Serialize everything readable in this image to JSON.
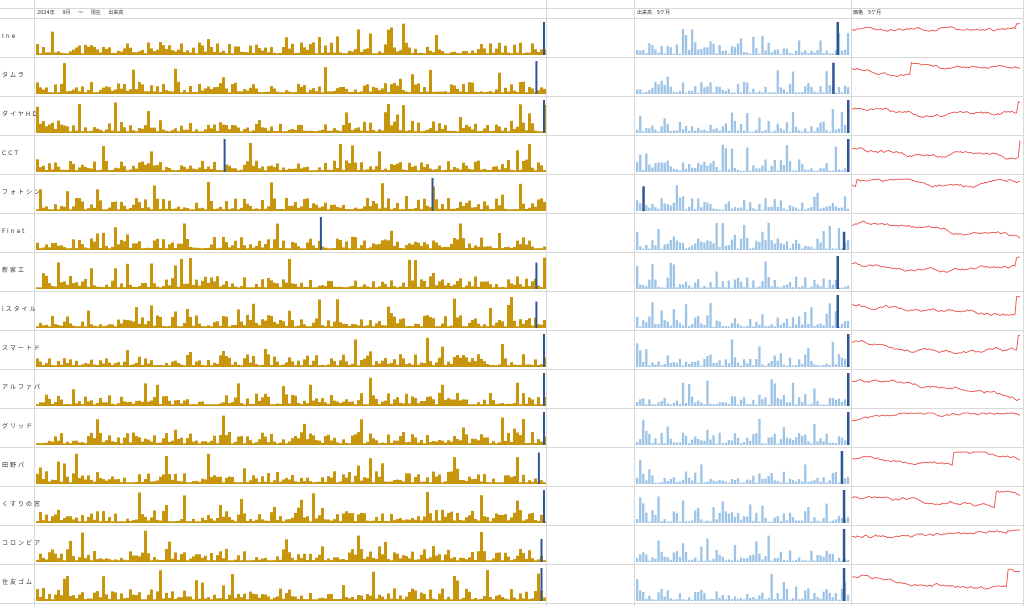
{
  "header": {
    "year_label": "2024年",
    "month_label": "9月",
    "tilde": "〜",
    "now_label": "現在",
    "volume_label": "出来高",
    "right_volume_label": "出来高　5ケ月",
    "price_label": "価格　5ケ月"
  },
  "colors": {
    "long_bar": "#c8960c",
    "short_bar": "#9dc3e6",
    "highlight": "#2f5597",
    "line": "#e8403a",
    "gridline": "#d9d9d9"
  },
  "chart_data": {
    "type": "bar",
    "panels": [
      "volume_since_2024_09",
      "volume_5_months",
      "price_5_months"
    ],
    "rows": [
      {
        "name": "Ine",
        "seed": 11,
        "long_hl": [
          1.0,
          1.0
        ],
        "short_hl": [
          0.95,
          1.0
        ],
        "spike_pos": 0.97
      },
      {
        "name": "タムラ",
        "seed": 23,
        "long_hl": [
          0.985,
          1.0
        ],
        "short_hl": [
          0.93,
          0.95
        ],
        "spike_pos": 0.35
      },
      {
        "name": "ダイヤHD",
        "seed": 37,
        "long_hl": [
          1.0,
          1.0
        ],
        "short_hl": [
          1.0,
          1.0
        ],
        "spike_pos": 0.98
      },
      {
        "name": "CCT",
        "seed": 41,
        "long_hl": [
          0.37,
          1.0
        ],
        "short_hl": [
          1.0,
          1.0
        ],
        "spike_pos": 0.99
      },
      {
        "name": "フォトシン",
        "seed": 53,
        "long_hl": [
          0.78,
          1.0
        ],
        "short_hl": [
          0.03,
          0.75
        ],
        "spike_pos": 0.03
      },
      {
        "name": "Finat",
        "seed": 67,
        "long_hl": [
          0.56,
          1.0
        ],
        "short_hl": [
          0.98,
          0.55
        ],
        "spike_pos": 1.0
      },
      {
        "name": "新家工",
        "seed": 71,
        "long_hl": [
          0.985,
          0.8
        ],
        "short_hl": [
          0.95,
          1.0
        ],
        "spike_pos": 0.97
      },
      {
        "name": "iスタイル",
        "seed": 83,
        "long_hl": [
          0.985,
          0.8
        ],
        "short_hl": [
          0.95,
          1.0
        ],
        "spike_pos": 0.97
      },
      {
        "name": "スマートド",
        "seed": 97,
        "long_hl": [
          1.0,
          1.0
        ],
        "short_hl": [
          1.0,
          1.0
        ],
        "spike_pos": 0.98
      },
      {
        "name": "アルファパ",
        "seed": 101,
        "long_hl": [
          1.0,
          1.0
        ],
        "short_hl": [
          1.0,
          1.0
        ],
        "spike_pos": 1.0
      },
      {
        "name": "グリッド",
        "seed": 113,
        "long_hl": [
          1.0,
          1.0
        ],
        "short_hl": [
          1.0,
          1.0
        ],
        "spike_pos": 0.9
      },
      {
        "name": "田野パ",
        "seed": 127,
        "long_hl": [
          0.99,
          0.95
        ],
        "short_hl": [
          0.97,
          1.0
        ],
        "spike_pos": 0.6
      },
      {
        "name": "くすりの窓",
        "seed": 131,
        "long_hl": [
          1.0,
          1.0
        ],
        "short_hl": [
          0.98,
          1.0
        ],
        "spike_pos": 0.85
      },
      {
        "name": "コロンビア",
        "seed": 149,
        "long_hl": [
          0.995,
          0.7
        ],
        "short_hl": [
          0.98,
          1.0
        ],
        "spike_pos": 0.92
      },
      {
        "name": "住友ゴム",
        "seed": 157,
        "long_hl": [
          0.995,
          1.0
        ],
        "short_hl": [
          0.98,
          1.0
        ],
        "spike_pos": 0.92
      }
    ]
  }
}
